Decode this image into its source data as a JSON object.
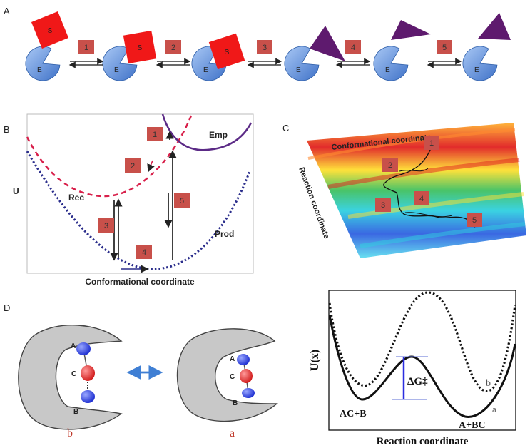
{
  "panel_labels": {
    "a": "A",
    "b": "B",
    "c": "C",
    "d": "D"
  },
  "panel_a": {
    "enzyme_label": "E",
    "substrate_label": "S",
    "step_labels": [
      "1",
      "2",
      "3",
      "4",
      "5"
    ],
    "colors": {
      "enzyme": "#6b9be0",
      "substrate": "#f01818",
      "product": "#5e1a6e",
      "step_box": "#c8504a"
    }
  },
  "panel_b": {
    "y_axis_label": "U",
    "x_axis_label": "Conformational coordinate",
    "curve_labels": {
      "emp": "Emp",
      "rec": "Rec",
      "prod": "Prod"
    },
    "step_labels": [
      "1",
      "2",
      "3",
      "4",
      "5"
    ],
    "colors": {
      "rec": "#d81f4a",
      "prod": "#2b2e8c",
      "emp": "#5b2a86"
    }
  },
  "panel_c": {
    "top_axis_label": "Conformational coordinate",
    "side_axis_label": "Reaction coordinate",
    "step_labels": [
      "1",
      "2",
      "3",
      "4",
      "5"
    ]
  },
  "panel_d": {
    "atom_labels": [
      "A",
      "C",
      "B"
    ],
    "state_labels": {
      "left": "b",
      "right": "a"
    },
    "colors": {
      "enzyme": "#c8c8c8",
      "atom_ab": "#2b3ee0",
      "atom_c": "#e02b2b",
      "state_label": "#c0392b",
      "arrow": "#3f7fd4"
    }
  },
  "panel_d_plot": {
    "y_axis_label": "U(x)",
    "x_axis_label": "Reaction coordinate",
    "barrier_label": "ΔG‡",
    "reactant_label": "AC+B",
    "product_label": "A+BC",
    "curve_labels": {
      "dotted": "b",
      "solid": "a"
    }
  }
}
